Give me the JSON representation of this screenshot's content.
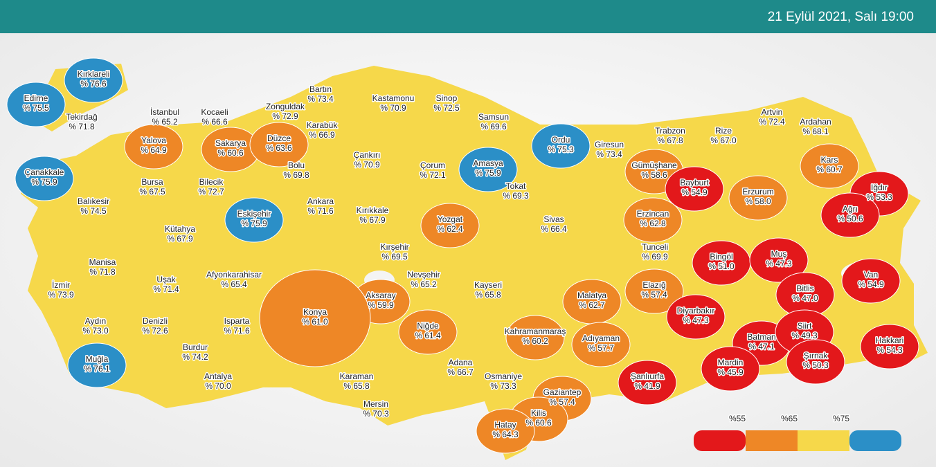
{
  "header": {
    "date": "21 Eylül 2021, Salı 19:00"
  },
  "colors": {
    "red": "#e3181b",
    "orange": "#ee8726",
    "yellow": "#f6d84a",
    "blue": "#2b8fc7"
  },
  "provinces": [
    {
      "name": "Kırklareli",
      "label": "% 76.6",
      "color": "blue"
    },
    {
      "name": "Edirne",
      "label": "% 75.5",
      "color": "blue"
    },
    {
      "name": "Tekirdağ",
      "label": "% 71.8",
      "color": "yellow"
    },
    {
      "name": "İstanbul",
      "label": "% 65.2",
      "color": "yellow"
    },
    {
      "name": "Kocaeli",
      "label": "% 66.6",
      "color": "yellow"
    },
    {
      "name": "Yalova",
      "label": "% 64.9",
      "color": "orange"
    },
    {
      "name": "Sakarya",
      "label": "% 60.6",
      "color": "orange"
    },
    {
      "name": "Düzce",
      "label": "% 63.6",
      "color": "orange"
    },
    {
      "name": "Zonguldak",
      "label": "% 72.9",
      "color": "yellow"
    },
    {
      "name": "Bartın",
      "label": "% 73.4",
      "color": "yellow"
    },
    {
      "name": "Kastamonu",
      "label": "% 70.9",
      "color": "yellow"
    },
    {
      "name": "Sinop",
      "label": "% 72.5",
      "color": "yellow"
    },
    {
      "name": "Samsun",
      "label": "% 69.6",
      "color": "yellow"
    },
    {
      "name": "Karabük",
      "label": "% 66.9",
      "color": "yellow"
    },
    {
      "name": "Çanakkale",
      "label": "% 75.9",
      "color": "blue"
    },
    {
      "name": "Bursa",
      "label": "% 67.5",
      "color": "yellow"
    },
    {
      "name": "Bilecik",
      "label": "% 72.7",
      "color": "yellow"
    },
    {
      "name": "Bolu",
      "label": "% 69.8",
      "color": "yellow"
    },
    {
      "name": "Çankırı",
      "label": "% 70.9",
      "color": "yellow"
    },
    {
      "name": "Çorum",
      "label": "% 72.1",
      "color": "yellow"
    },
    {
      "name": "Amasya",
      "label": "% 75.9",
      "color": "blue"
    },
    {
      "name": "Ordu",
      "label": "% 75.3",
      "color": "blue"
    },
    {
      "name": "Giresun",
      "label": "% 73.4",
      "color": "yellow"
    },
    {
      "name": "Trabzon",
      "label": "% 67.8",
      "color": "yellow"
    },
    {
      "name": "Rize",
      "label": "% 67.0",
      "color": "yellow"
    },
    {
      "name": "Artvin",
      "label": "% 72.4",
      "color": "yellow"
    },
    {
      "name": "Ardahan",
      "label": "% 68.1",
      "color": "yellow"
    },
    {
      "name": "Kars",
      "label": "% 60.7",
      "color": "orange"
    },
    {
      "name": "Gümüşhane",
      "label": "% 58.6",
      "color": "orange"
    },
    {
      "name": "Bayburt",
      "label": "% 54.9",
      "color": "red"
    },
    {
      "name": "Erzurum",
      "label": "% 58.0",
      "color": "orange"
    },
    {
      "name": "Iğdır",
      "label": "% 53.3",
      "color": "red"
    },
    {
      "name": "Ağrı",
      "label": "% 50.6",
      "color": "red"
    },
    {
      "name": "Tokat",
      "label": "% 69.3",
      "color": "yellow"
    },
    {
      "name": "Sivas",
      "label": "% 66.4",
      "color": "yellow"
    },
    {
      "name": "Yozgat",
      "label": "% 62.4",
      "color": "orange"
    },
    {
      "name": "Kırıkkale",
      "label": "% 67.9",
      "color": "yellow"
    },
    {
      "name": "Ankara",
      "label": "% 71.6",
      "color": "yellow"
    },
    {
      "name": "Eskişehir",
      "label": "% 75.9",
      "color": "blue"
    },
    {
      "name": "Balıkesir",
      "label": "% 74.5",
      "color": "yellow"
    },
    {
      "name": "Kütahya",
      "label": "% 67.9",
      "color": "yellow"
    },
    {
      "name": "Erzincan",
      "label": "% 62.8",
      "color": "orange"
    },
    {
      "name": "Tunceli",
      "label": "% 69.9",
      "color": "yellow"
    },
    {
      "name": "Bingöl",
      "label": "% 51.0",
      "color": "red"
    },
    {
      "name": "Muş",
      "label": "% 47.3",
      "color": "red"
    },
    {
      "name": "Van",
      "label": "% 54.9",
      "color": "red"
    },
    {
      "name": "Bitlis",
      "label": "% 47.0",
      "color": "red"
    },
    {
      "name": "Kırşehir",
      "label": "% 69.5",
      "color": "yellow"
    },
    {
      "name": "Nevşehir",
      "label": "% 65.2",
      "color": "yellow"
    },
    {
      "name": "Manisa",
      "label": "% 71.8",
      "color": "yellow"
    },
    {
      "name": "Uşak",
      "label": "% 71.4",
      "color": "yellow"
    },
    {
      "name": "Afyonkarahisar",
      "label": "% 65.4",
      "color": "yellow"
    },
    {
      "name": "İzmir",
      "label": "% 73.9",
      "color": "yellow"
    },
    {
      "name": "Aksaray",
      "label": "% 59.9",
      "color": "orange"
    },
    {
      "name": "Kayseri",
      "label": "% 65.8",
      "color": "yellow"
    },
    {
      "name": "Malatya",
      "label": "% 62.7",
      "color": "orange"
    },
    {
      "name": "Elazığ",
      "label": "% 57.4",
      "color": "orange"
    },
    {
      "name": "Diyarbakır",
      "label": "% 47.3",
      "color": "red"
    },
    {
      "name": "Konya",
      "label": "% 61.0",
      "color": "orange"
    },
    {
      "name": "Niğde",
      "label": "% 61.4",
      "color": "orange"
    },
    {
      "name": "Aydın",
      "label": "% 73.0",
      "color": "yellow"
    },
    {
      "name": "Denizli",
      "label": "% 72.6",
      "color": "yellow"
    },
    {
      "name": "Isparta",
      "label": "% 71.6",
      "color": "yellow"
    },
    {
      "name": "Kahramanmaraş",
      "label": "% 60.2",
      "color": "orange"
    },
    {
      "name": "Adıyaman",
      "label": "% 57.7",
      "color": "orange"
    },
    {
      "name": "Batman",
      "label": "% 47.1",
      "color": "red"
    },
    {
      "name": "Siirt",
      "label": "% 49.3",
      "color": "red"
    },
    {
      "name": "Hakkari",
      "label": "% 54.3",
      "color": "red"
    },
    {
      "name": "Muğla",
      "label": "% 76.1",
      "color": "blue"
    },
    {
      "name": "Burdur",
      "label": "% 74.2",
      "color": "yellow"
    },
    {
      "name": "Şırnak",
      "label": "% 50.3",
      "color": "red"
    },
    {
      "name": "Mardin",
      "label": "% 45.9",
      "color": "red"
    },
    {
      "name": "Adana",
      "label": "% 66.7",
      "color": "yellow"
    },
    {
      "name": "Osmaniye",
      "label": "% 73.3",
      "color": "yellow"
    },
    {
      "name": "Karaman",
      "label": "% 65.8",
      "color": "yellow"
    },
    {
      "name": "Antalya",
      "label": "% 70.0",
      "color": "yellow"
    },
    {
      "name": "Şanlıurfa",
      "label": "% 41.9",
      "color": "red"
    },
    {
      "name": "Gaziantep",
      "label": "% 57.4",
      "color": "orange"
    },
    {
      "name": "Mersin",
      "label": "% 70.3",
      "color": "yellow"
    },
    {
      "name": "Kilis",
      "label": "% 60.6",
      "color": "orange"
    },
    {
      "name": "Hatay",
      "label": "% 64.3",
      "color": "orange"
    }
  ],
  "legend": {
    "labels": [
      "%55",
      "%65",
      "%75"
    ],
    "colors": [
      "red",
      "orange",
      "yellow",
      "blue"
    ]
  }
}
